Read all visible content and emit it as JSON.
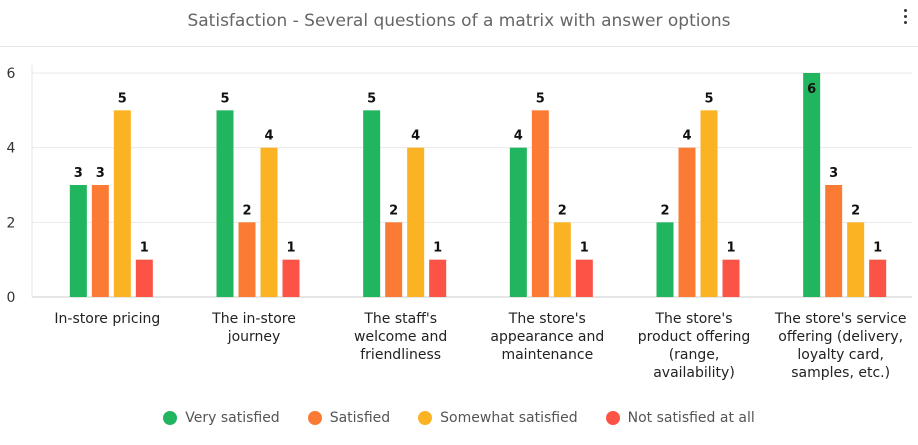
{
  "header": {
    "title": "Satisfaction - Several questions of a matrix with answer options",
    "menu_icon": "more-vertical-icon"
  },
  "chart_data": {
    "type": "bar",
    "title": "Satisfaction - Several questions of a matrix with answer options",
    "categories": [
      "In-store pricing",
      "The in-store journey",
      "The staff's welcome and friendliness",
      "The store's appearance and maintenance",
      "The store's product offering (range, availability)",
      "The store's service offering (delivery, loyalty card, samples, etc.)"
    ],
    "series": [
      {
        "name": "Very satisfied",
        "color": "#22b55f",
        "values": [
          3,
          5,
          5,
          4,
          2,
          6
        ]
      },
      {
        "name": "Satisfied",
        "color": "#fc7b34",
        "values": [
          3,
          2,
          2,
          5,
          4,
          3
        ]
      },
      {
        "name": "Somewhat satisfied",
        "color": "#fbb324",
        "values": [
          5,
          4,
          4,
          2,
          5,
          2
        ]
      },
      {
        "name": "Not satisfied at all",
        "color": "#fb5447",
        "values": [
          1,
          1,
          1,
          1,
          1,
          1
        ]
      }
    ],
    "ylim": [
      0,
      6
    ],
    "yticks": [
      0,
      2,
      4,
      6
    ],
    "xlabel": "",
    "ylabel": "",
    "grid": true,
    "legend_position": "bottom"
  }
}
